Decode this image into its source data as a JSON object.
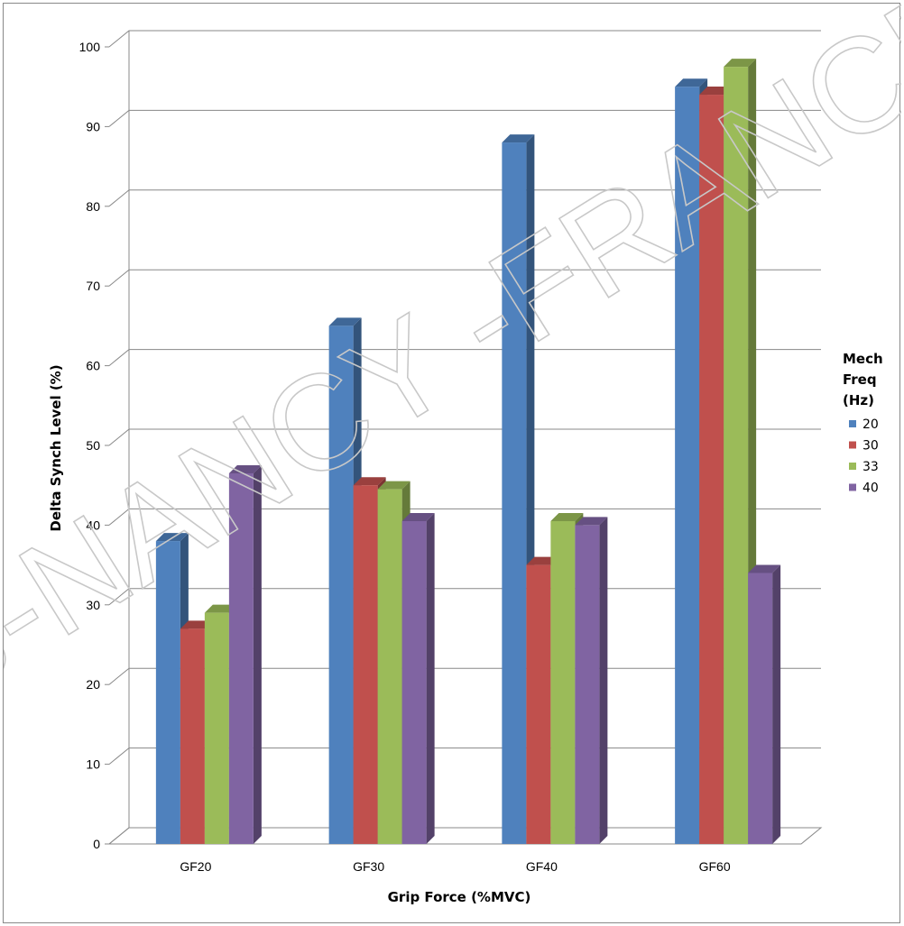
{
  "chart_data": {
    "type": "bar",
    "title": "",
    "xlabel": "Grip Force (%MVC)",
    "ylabel": "Delta Synch Level (%)",
    "ylim": [
      0,
      100
    ],
    "yticks": [
      0,
      10,
      20,
      30,
      40,
      50,
      60,
      70,
      80,
      90,
      100
    ],
    "grid": true,
    "legend_position": "right",
    "legend_title_lines": [
      "Mech",
      "Freq",
      "(Hz)"
    ],
    "categories": [
      "GF20",
      "GF30",
      "GF40",
      "GF60"
    ],
    "series": [
      {
        "name": "20",
        "color": "#4f81bd",
        "values": [
          38,
          65,
          88,
          95
        ]
      },
      {
        "name": "30",
        "color": "#c0504d",
        "values": [
          27,
          45,
          35,
          94
        ]
      },
      {
        "name": "33",
        "color": "#9bbb59",
        "values": [
          29,
          44.5,
          40.5,
          97.5
        ]
      },
      {
        "name": "40",
        "color": "#8064a2",
        "values": [
          46.5,
          40.5,
          40,
          34
        ]
      }
    ]
  },
  "watermark": {
    "text": "B-NANCY -FRANCE"
  }
}
